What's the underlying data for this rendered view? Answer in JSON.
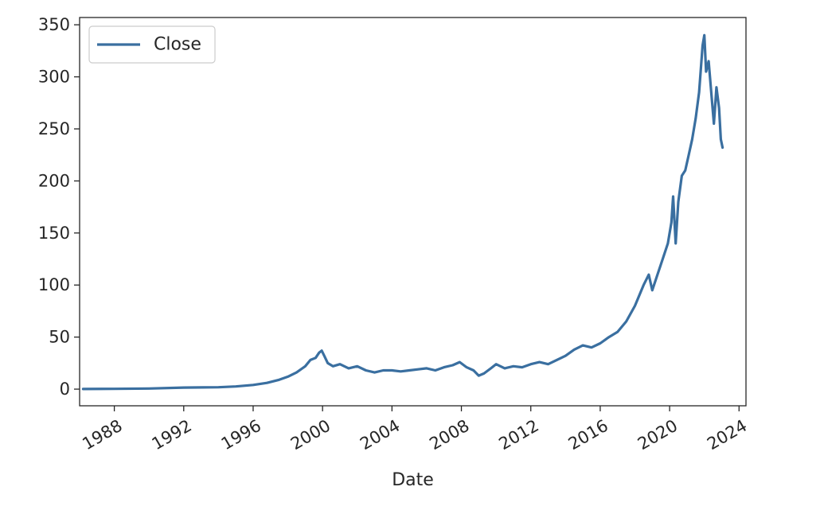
{
  "chart_data": {
    "type": "line",
    "title": "",
    "xlabel": "Date",
    "ylabel": "",
    "x_axis": "date",
    "xlim": [
      1986.0,
      2024.4
    ],
    "ylim": [
      -16,
      357
    ],
    "x_ticks": [
      {
        "value": 1988,
        "label": "1988"
      },
      {
        "value": 1992,
        "label": "1992"
      },
      {
        "value": 1996,
        "label": "1996"
      },
      {
        "value": 2000,
        "label": "2000"
      },
      {
        "value": 2004,
        "label": "2004"
      },
      {
        "value": 2008,
        "label": "2008"
      },
      {
        "value": 2012,
        "label": "2012"
      },
      {
        "value": 2016,
        "label": "2016"
      },
      {
        "value": 2020,
        "label": "2020"
      },
      {
        "value": 2024,
        "label": "2024"
      }
    ],
    "y_ticks": [
      {
        "value": 0,
        "label": "0"
      },
      {
        "value": 50,
        "label": "50"
      },
      {
        "value": 100,
        "label": "100"
      },
      {
        "value": 150,
        "label": "150"
      },
      {
        "value": 200,
        "label": "200"
      },
      {
        "value": 250,
        "label": "250"
      },
      {
        "value": 300,
        "label": "300"
      },
      {
        "value": 350,
        "label": "350"
      }
    ],
    "grid": false,
    "legend": {
      "position": "top-left",
      "entries": [
        "Close"
      ]
    },
    "series": [
      {
        "name": "Close",
        "color": "#3a6fa0",
        "points": [
          [
            1986.2,
            0.1
          ],
          [
            1988.0,
            0.3
          ],
          [
            1990.0,
            0.6
          ],
          [
            1992.0,
            1.5
          ],
          [
            1994.0,
            1.8
          ],
          [
            1995.0,
            2.6
          ],
          [
            1996.0,
            4.0
          ],
          [
            1996.8,
            6.0
          ],
          [
            1997.5,
            9.0
          ],
          [
            1998.0,
            12.0
          ],
          [
            1998.5,
            16.0
          ],
          [
            1999.0,
            22.0
          ],
          [
            1999.3,
            28.0
          ],
          [
            1999.6,
            30.0
          ],
          [
            1999.8,
            35.0
          ],
          [
            1999.95,
            37.0
          ],
          [
            2000.1,
            32.0
          ],
          [
            2000.3,
            25.0
          ],
          [
            2000.6,
            22.0
          ],
          [
            2001.0,
            24.0
          ],
          [
            2001.5,
            20.0
          ],
          [
            2002.0,
            22.0
          ],
          [
            2002.5,
            18.0
          ],
          [
            2003.0,
            16.0
          ],
          [
            2003.5,
            18.0
          ],
          [
            2004.0,
            18.0
          ],
          [
            2004.5,
            17.0
          ],
          [
            2005.0,
            18.0
          ],
          [
            2005.5,
            19.0
          ],
          [
            2006.0,
            20.0
          ],
          [
            2006.5,
            18.0
          ],
          [
            2007.0,
            21.0
          ],
          [
            2007.5,
            23.0
          ],
          [
            2007.9,
            26.0
          ],
          [
            2008.3,
            21.0
          ],
          [
            2008.7,
            18.0
          ],
          [
            2009.0,
            13.0
          ],
          [
            2009.3,
            15.0
          ],
          [
            2009.7,
            20.0
          ],
          [
            2010.0,
            24.0
          ],
          [
            2010.5,
            20.0
          ],
          [
            2011.0,
            22.0
          ],
          [
            2011.5,
            21.0
          ],
          [
            2012.0,
            24.0
          ],
          [
            2012.5,
            26.0
          ],
          [
            2013.0,
            24.0
          ],
          [
            2013.5,
            28.0
          ],
          [
            2014.0,
            32.0
          ],
          [
            2014.5,
            38.0
          ],
          [
            2015.0,
            42.0
          ],
          [
            2015.5,
            40.0
          ],
          [
            2016.0,
            44.0
          ],
          [
            2016.5,
            50.0
          ],
          [
            2017.0,
            55.0
          ],
          [
            2017.5,
            65.0
          ],
          [
            2018.0,
            80.0
          ],
          [
            2018.5,
            100.0
          ],
          [
            2018.8,
            110.0
          ],
          [
            2019.0,
            95.0
          ],
          [
            2019.3,
            110.0
          ],
          [
            2019.6,
            125.0
          ],
          [
            2019.9,
            140.0
          ],
          [
            2020.1,
            160.0
          ],
          [
            2020.2,
            185.0
          ],
          [
            2020.35,
            140.0
          ],
          [
            2020.5,
            180.0
          ],
          [
            2020.7,
            205.0
          ],
          [
            2020.9,
            210.0
          ],
          [
            2021.1,
            225.0
          ],
          [
            2021.3,
            240.0
          ],
          [
            2021.5,
            260.0
          ],
          [
            2021.7,
            285.0
          ],
          [
            2021.9,
            330.0
          ],
          [
            2022.0,
            340.0
          ],
          [
            2022.1,
            305.0
          ],
          [
            2022.25,
            315.0
          ],
          [
            2022.4,
            285.0
          ],
          [
            2022.55,
            255.0
          ],
          [
            2022.7,
            290.0
          ],
          [
            2022.85,
            270.0
          ],
          [
            2022.95,
            240.0
          ],
          [
            2023.05,
            232.0
          ]
        ]
      }
    ]
  }
}
